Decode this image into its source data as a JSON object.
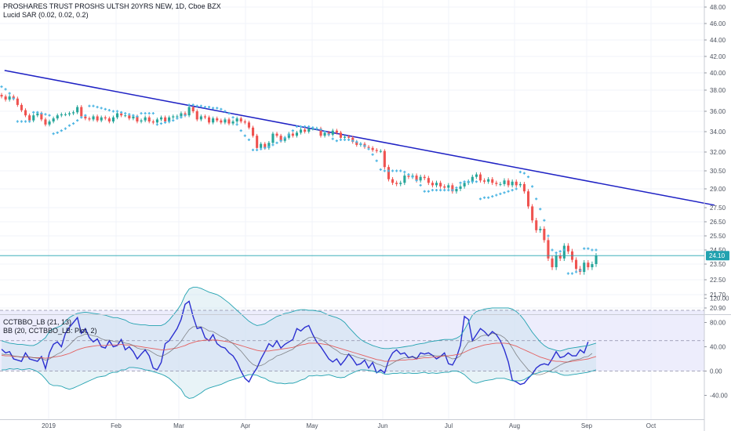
{
  "legend": {
    "title": "PROSHARES TRUST PROSHS ULTSH 20YRS NEW, 1D, Cboe BZX",
    "sar": "Lucid SAR (0.02, 0.02, 0.2)",
    "ind1": "CCTBBO_LB (21, 13)",
    "ind2": "BB (20, CCTBBO_LB: Plot, 2)"
  },
  "colors": {
    "up": "#26a69a",
    "down": "#ef5350",
    "sar": "#4fb6e3",
    "trendline": "#1f22c4",
    "cci": "#2b2fd0",
    "bb_basis": "#e45f5f",
    "bb_band": "#22a2b0",
    "fill": "#e7e7fb",
    "last_price": "#22a2b0"
  },
  "chart_data": [
    {
      "type": "candlestick",
      "title": "PROSHARES TRUST PROSHS ULTSH 20YRS NEW, 1D, Cboe BZX",
      "y_ticks": [
        "48.00",
        "46.00",
        "44.00",
        "42.00",
        "40.00",
        "38.00",
        "36.00",
        "34.00",
        "32.00",
        "30.50",
        "29.00",
        "27.50",
        "26.50",
        "25.50",
        "24.50",
        "23.50",
        "22.50",
        "21.70",
        "20.90"
      ],
      "last_price": "24.10",
      "trendline": {
        "from": {
          "date": "2018-12-13",
          "value": 40.3
        },
        "to": {
          "date": "2019-10-31",
          "value": 27.7
        }
      },
      "close": [
        37.4,
        37.1,
        37.4,
        37.2,
        36.6,
        36.1,
        35.6,
        35.1,
        35.6,
        35.8,
        35.2,
        34.7,
        35.0,
        35.3,
        35.6,
        35.7,
        35.7,
        35.8,
        35.9,
        36.4,
        35.5,
        35.3,
        35.2,
        35.5,
        35.1,
        35.4,
        35.3,
        35.0,
        35.4,
        35.8,
        35.6,
        35.6,
        35.3,
        35.5,
        35.0,
        35.1,
        35.4,
        35.0,
        34.9,
        35.2,
        35.4,
        35.0,
        35.4,
        35.5,
        35.5,
        35.8,
        35.6,
        36.4,
        36.0,
        35.2,
        35.5,
        35.4,
        34.9,
        35.3,
        35.1,
        34.9,
        35.2,
        34.8,
        35.0,
        35.3,
        35.0,
        34.9,
        34.4,
        33.6,
        32.4,
        32.8,
        32.4,
        32.9,
        33.8,
        33.6,
        33.1,
        33.4,
        33.8,
        33.6,
        33.9,
        34.2,
        34.0,
        34.3,
        34.3,
        34.3,
        33.6,
        33.9,
        33.7,
        34.1,
        33.9,
        33.4,
        33.5,
        33.4,
        33.0,
        32.7,
        32.8,
        32.5,
        32.4,
        32.2,
        32.1,
        32.1,
        30.8,
        29.8,
        29.5,
        29.4,
        29.5,
        30.1,
        30.0,
        30.1,
        29.7,
        30.0,
        29.9,
        29.5,
        29.3,
        29.5,
        29.2,
        29.1,
        29.3,
        28.8,
        29.0,
        29.2,
        29.5,
        29.6,
        30.0,
        30.2,
        29.7,
        29.6,
        29.8,
        29.5,
        29.4,
        29.4,
        29.7,
        29.3,
        29.6,
        29.3,
        29.4,
        28.8,
        27.6,
        26.6,
        25.9,
        26.0,
        25.2,
        23.9,
        23.3,
        24.1,
        23.9,
        24.8,
        24.4,
        23.8,
        23.2,
        23.0,
        23.6,
        23.3,
        23.5,
        24.1
      ],
      "sar": [
        38.4,
        38.1,
        37.7,
        37.2,
        35.0,
        35.0,
        35.0,
        35.0,
        35.9,
        35.9,
        35.8,
        35.7,
        35.6,
        33.8,
        33.9,
        34.1,
        34.3,
        34.6,
        34.8,
        35.1,
        35.4,
        35.6,
        36.5,
        36.5,
        36.4,
        36.3,
        36.2,
        36.1,
        36.0,
        36.0,
        35.9,
        35.8,
        35.7,
        35.6,
        35.5,
        35.8,
        35.8,
        35.8,
        35.8,
        34.7,
        34.8,
        34.9,
        35.0,
        35.1,
        35.3,
        35.4,
        35.6,
        36.6,
        36.6,
        36.5,
        36.5,
        36.4,
        36.4,
        36.3,
        36.3,
        36.2,
        36.0,
        35.8,
        35.4,
        34.7,
        34.1,
        33.6,
        33.2,
        32.2,
        32.2,
        32.3,
        32.4,
        32.5,
        32.7,
        32.9,
        33.1,
        33.4,
        33.7,
        34.1,
        34.5,
        34.5,
        34.5,
        34.5,
        34.4,
        34.3,
        34.2,
        34.0,
        33.7,
        33.3,
        33.1,
        33.2,
        33.2,
        33.2,
        33.1,
        33.0,
        32.8,
        32.6,
        32.3,
        31.8,
        31.3,
        30.6,
        30.5,
        30.5,
        30.5,
        30.5,
        30.5,
        30.4,
        30.2,
        30.0,
        29.7,
        29.3,
        28.8,
        28.8,
        28.9,
        28.9,
        28.9,
        28.9,
        28.9,
        28.9,
        29.1,
        29.5,
        29.6,
        29.6,
        29.6,
        29.6,
        28.2,
        28.3,
        28.3,
        28.4,
        28.5,
        28.6,
        28.7,
        28.8,
        28.9,
        29.0,
        30.4,
        30.3,
        30.0,
        29.2,
        28.2,
        27.4,
        26.6,
        25.5,
        24.5,
        24.3,
        24.4,
        24.5,
        22.9,
        22.9,
        23.0,
        23.1,
        24.6,
        24.6,
        24.5,
        24.5
      ]
    },
    {
      "type": "line",
      "title": "CCTBBO_LB (21, 13)",
      "y_ticks": [
        "120.00",
        "80.00",
        "40.00",
        "0.00",
        "-40.00"
      ],
      "hlines": [
        100,
        50,
        0
      ],
      "x_ticks": [
        "2019",
        "Feb",
        "Mar",
        "Apr",
        "May",
        "Jun",
        "Jul",
        "Aug",
        "Sep",
        "Oct"
      ],
      "series": [
        {
          "values": [
            36,
            30,
            32,
            20,
            18,
            16,
            30,
            20,
            18,
            16,
            24,
            4,
            30,
            44,
            48,
            40,
            62,
            72,
            80,
            88,
            62,
            70,
            55,
            48,
            53,
            40,
            38,
            50,
            40,
            42,
            52,
            35,
            40,
            32,
            20,
            28,
            35,
            25,
            5,
            2,
            14,
            45,
            50,
            60,
            70,
            85,
            110,
            115,
            90,
            70,
            72,
            55,
            50,
            60,
            45,
            40,
            38,
            30,
            25,
            15,
            0,
            -12,
            -18,
            -5,
            5,
            20,
            32,
            45,
            40,
            50,
            38,
            44,
            48,
            52,
            70,
            66,
            72,
            75,
            60,
            48,
            40,
            30,
            20,
            15,
            20,
            10,
            18,
            28,
            20,
            10,
            12,
            18,
            5,
            14,
            -3,
            2,
            -3,
            18,
            30,
            35,
            28,
            30,
            22,
            24,
            20,
            30,
            28,
            30,
            26,
            20,
            24,
            30,
            12,
            10,
            22,
            42,
            90,
            85,
            50,
            60,
            70,
            65,
            58,
            65,
            60,
            50,
            35,
            15,
            -15,
            -18,
            -22,
            -20,
            -12,
            -5,
            5,
            10,
            12,
            10,
            20,
            32,
            22,
            24,
            30,
            25,
            25,
            35,
            30,
            48
          ]
        },
        {
          "name": "BB basis",
          "values": [
            26,
            25,
            25,
            24,
            24,
            23,
            23,
            23,
            22,
            22,
            22,
            21,
            22,
            23,
            24,
            25,
            27,
            29,
            32,
            35,
            37,
            39,
            40,
            41,
            42,
            42,
            42,
            43,
            43,
            43,
            44,
            43,
            43,
            42,
            41,
            40,
            39,
            38,
            37,
            36,
            35,
            35,
            36,
            37,
            38,
            40,
            42,
            45,
            47,
            49,
            50,
            51,
            51,
            51,
            51,
            50,
            49,
            48,
            46,
            44,
            42,
            40,
            38,
            36,
            34,
            33,
            33,
            33,
            34,
            35,
            36,
            37,
            38,
            39,
            41,
            43,
            44,
            46,
            46,
            46,
            45,
            44,
            43,
            41,
            39,
            37,
            35,
            33,
            31,
            29,
            27,
            25,
            23,
            21,
            19,
            18,
            16,
            16,
            17,
            17,
            18,
            18,
            19,
            19,
            20,
            21,
            22,
            22,
            23,
            23,
            24,
            25,
            25,
            26,
            27,
            28,
            31,
            34,
            37,
            39,
            41,
            43,
            44,
            45,
            46,
            46,
            46,
            45,
            43,
            41,
            38,
            35,
            32,
            29,
            26,
            23,
            21,
            19,
            17,
            16,
            16,
            15,
            15,
            16,
            17,
            18,
            19,
            20,
            22,
            24
          ]
        },
        {
          "name": "BB upper",
          "values": [
            50,
            48,
            46,
            45,
            44,
            44,
            43,
            42,
            42,
            45,
            50,
            55,
            65,
            70,
            72,
            75,
            82,
            88,
            92,
            95,
            96,
            97,
            96,
            95,
            94,
            93,
            92,
            90,
            88,
            88,
            86,
            84,
            80,
            78,
            77,
            76,
            76,
            75,
            75,
            75,
            75,
            78,
            84,
            92,
            100,
            110,
            125,
            135,
            138,
            138,
            136,
            133,
            130,
            128,
            126,
            122,
            117,
            112,
            106,
            100,
            94,
            88,
            82,
            78,
            75,
            76,
            78,
            82,
            86,
            90,
            92,
            95,
            96,
            98,
            100,
            101,
            101,
            100,
            100,
            99,
            98,
            95,
            92,
            90,
            88,
            85,
            80,
            72,
            65,
            58,
            52,
            48,
            45,
            42,
            40,
            38,
            37,
            37,
            38,
            38,
            39,
            40,
            41,
            42,
            44,
            45,
            46,
            48,
            49,
            50,
            51,
            52,
            52,
            52,
            54,
            58,
            68,
            80,
            92,
            98,
            100,
            102,
            103,
            104,
            104,
            104,
            104,
            104,
            102,
            98,
            92,
            84,
            74,
            64,
            56,
            48,
            42,
            38,
            36,
            34,
            33,
            35,
            37,
            38,
            39,
            40,
            41,
            42,
            44,
            46
          ]
        },
        {
          "name": "BB lower",
          "values": [
            2,
            2,
            4,
            3,
            4,
            2,
            3,
            4,
            2,
            -1,
            -6,
            -13,
            -21,
            -24,
            -24,
            -25,
            -28,
            -30,
            -28,
            -25,
            -22,
            -19,
            -16,
            -13,
            -10,
            -9,
            -8,
            -4,
            -2,
            -2,
            2,
            2,
            6,
            6,
            5,
            4,
            2,
            1,
            -1,
            -3,
            -5,
            -8,
            -12,
            -18,
            -24,
            -30,
            -41,
            -45,
            -44,
            -40,
            -36,
            -31,
            -28,
            -26,
            -24,
            -22,
            -19,
            -16,
            -14,
            -12,
            -10,
            -8,
            -6,
            -6,
            -7,
            -10,
            -12,
            -16,
            -18,
            -20,
            -20,
            -21,
            -20,
            -20,
            -18,
            -15,
            -13,
            -8,
            -8,
            -7,
            -8,
            -7,
            -6,
            -8,
            -10,
            -11,
            -10,
            -6,
            -3,
            0,
            2,
            2,
            1,
            0,
            -2,
            -2,
            -5,
            -5,
            -4,
            -4,
            -3,
            -4,
            -3,
            -4,
            -4,
            -3,
            -2,
            -4,
            -3,
            -4,
            -3,
            -2,
            -2,
            0,
            0,
            -2,
            -6,
            -12,
            -18,
            -20,
            -18,
            -16,
            -15,
            -14,
            -12,
            -12,
            -12,
            -14,
            -16,
            -16,
            -16,
            -14,
            -10,
            -6,
            -4,
            -2,
            0,
            0,
            -2,
            -2,
            -5,
            -7,
            -7,
            -6,
            -5,
            -4,
            -3,
            -2,
            0,
            2
          ]
        },
        {
          "name": "signal",
          "values": [
            28,
            27,
            27,
            25,
            24,
            23,
            24,
            23,
            22,
            21,
            21,
            18,
            20,
            24,
            28,
            31,
            37,
            43,
            50,
            56,
            58,
            61,
            60,
            58,
            57,
            53,
            51,
            51,
            49,
            48,
            49,
            46,
            45,
            42,
            38,
            36,
            36,
            34,
            30,
            26,
            24,
            27,
            31,
            36,
            42,
            49,
            59,
            68,
            73,
            73,
            73,
            70,
            66,
            65,
            61,
            57,
            54,
            50,
            45,
            39,
            33,
            25,
            17,
            11,
            8,
            9,
            12,
            17,
            20,
            25,
            27,
            30,
            33,
            36,
            42,
            46,
            51,
            55,
            56,
            55,
            52,
            48,
            43,
            38,
            34,
            29,
            27,
            27,
            26,
            23,
            21,
            20,
            17,
            16,
            12,
            10,
            7,
            9,
            13,
            17,
            20,
            22,
            22,
            23,
            22,
            24,
            25,
            26,
            26,
            25,
            25,
            26,
            23,
            20,
            21,
            25,
            38,
            48,
            49,
            52,
            57,
            59,
            59,
            62,
            61,
            59,
            55,
            48,
            38,
            27,
            18,
            10,
            2,
            -3,
            -6,
            -6,
            -4,
            -1,
            2,
            6,
            10,
            13,
            15,
            18,
            19,
            20,
            23,
            24,
            29
          ]
        }
      ]
    }
  ]
}
